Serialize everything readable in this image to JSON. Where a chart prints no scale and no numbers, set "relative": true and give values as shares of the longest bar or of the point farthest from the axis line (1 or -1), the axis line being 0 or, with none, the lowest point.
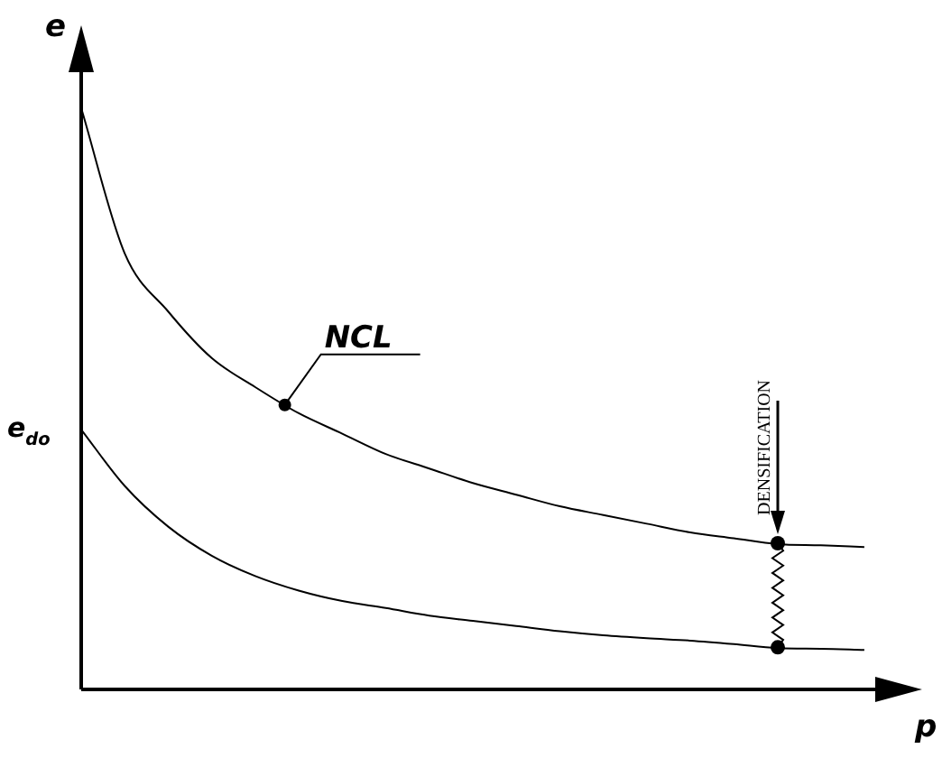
{
  "chart_data": {
    "type": "line",
    "relative": true,
    "xlabel": "p",
    "ylabel": "e",
    "categories": [
      null,
      null,
      null,
      null,
      null,
      null,
      null,
      null,
      null,
      null,
      null,
      null,
      null,
      null,
      null,
      null,
      null,
      null,
      null
    ],
    "series": [
      {
        "color": "#000000",
        "values": [
          1.0,
          0.75,
          0.65,
          0.57,
          0.52,
          0.475,
          0.44,
          0.405,
          0.38,
          0.355,
          0.335,
          0.315,
          0.3,
          0.285,
          0.27,
          0.26,
          0.25,
          0.248,
          0.245
        ]
      },
      {
        "color": "#000000",
        "values": [
          0.447,
          0.35,
          0.28,
          0.23,
          0.195,
          0.17,
          0.152,
          0.14,
          0.127,
          0.118,
          0.109,
          0.1,
          0.093,
          0.088,
          0.084,
          0.078,
          0.071,
          0.07,
          0.068
        ]
      }
    ],
    "annotations": [
      "e$_{do}$",
      "NCL",
      "DENSIFICATION"
    ],
    "marker": "none",
    "line_style": "solid"
  }
}
